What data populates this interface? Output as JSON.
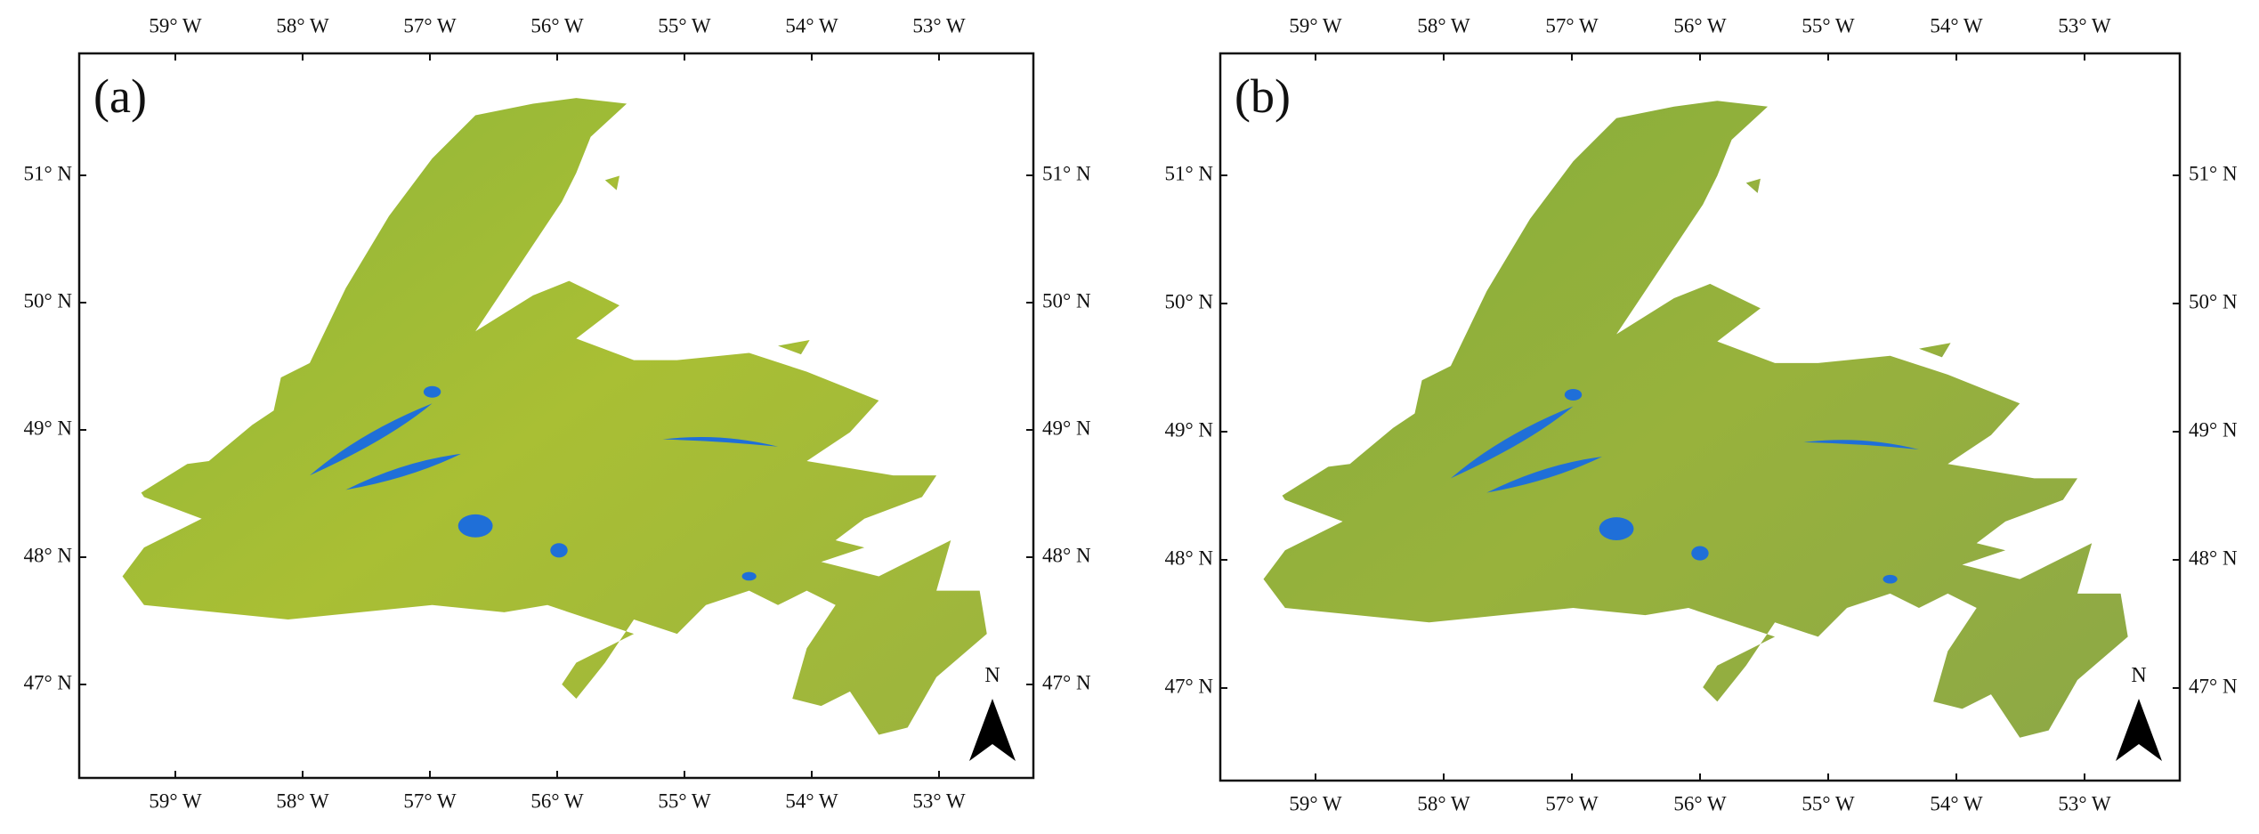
{
  "panels": [
    {
      "label": "(a)",
      "north": "N",
      "lon_labels": [
        "59° W",
        "58° W",
        "57° W",
        "56° W",
        "55° W",
        "54° W",
        "53° W"
      ],
      "lat_labels": [
        "51° N",
        "50° N",
        "49° N",
        "48° N",
        "47° N"
      ]
    },
    {
      "label": "(b)",
      "north": "N",
      "lon_labels": [
        "59° W",
        "58° W",
        "57° W",
        "56° W",
        "55° W",
        "54° W",
        "53° W"
      ],
      "lat_labels": [
        "51° N",
        "50° N",
        "49° N",
        "48° N",
        "47° N"
      ]
    }
  ]
}
